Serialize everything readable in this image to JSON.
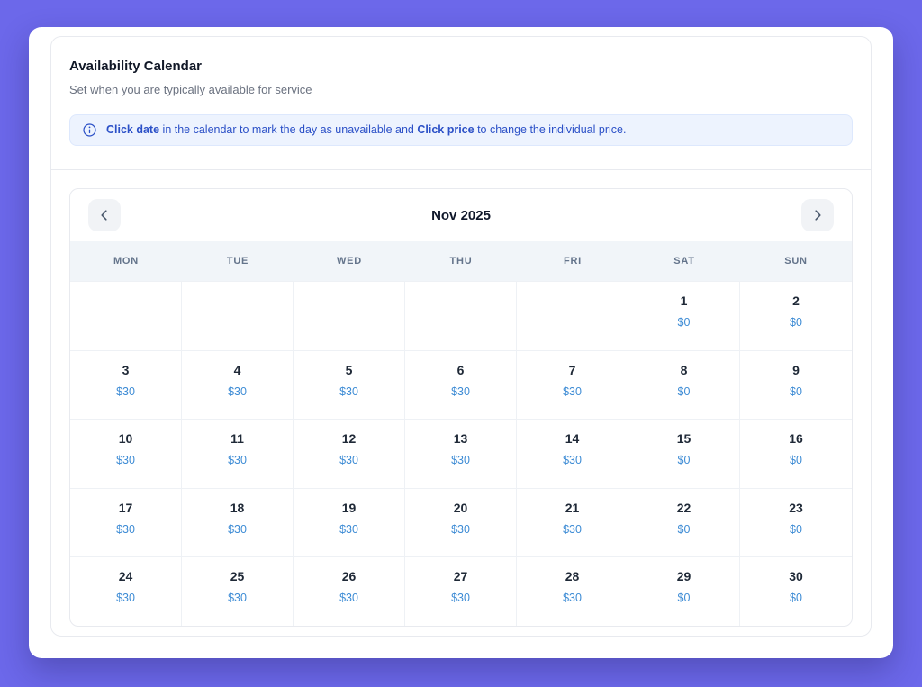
{
  "colors": {
    "page_bg": "#6c68ea",
    "accent_blue": "#2b50c7",
    "price_blue": "#3e8cd5"
  },
  "section": {
    "title": "Availability Calendar",
    "subtitle": "Set when you are typically available for service"
  },
  "banner": {
    "icon": "info-icon",
    "segments": [
      {
        "text": "Click date",
        "bold": true
      },
      {
        "text": " in the calendar to mark the day as unavailable and ",
        "bold": false
      },
      {
        "text": "Click price",
        "bold": true
      },
      {
        "text": " to change the individual price.",
        "bold": false
      }
    ]
  },
  "calendar": {
    "month_label": "Nov 2025",
    "weekdays": [
      "MON",
      "TUE",
      "WED",
      "THU",
      "FRI",
      "SAT",
      "SUN"
    ],
    "weeks": [
      [
        null,
        null,
        null,
        null,
        null,
        {
          "day": "1",
          "price": "$0"
        },
        {
          "day": "2",
          "price": "$0"
        }
      ],
      [
        {
          "day": "3",
          "price": "$30"
        },
        {
          "day": "4",
          "price": "$30"
        },
        {
          "day": "5",
          "price": "$30"
        },
        {
          "day": "6",
          "price": "$30"
        },
        {
          "day": "7",
          "price": "$30"
        },
        {
          "day": "8",
          "price": "$0"
        },
        {
          "day": "9",
          "price": "$0"
        }
      ],
      [
        {
          "day": "10",
          "price": "$30"
        },
        {
          "day": "11",
          "price": "$30"
        },
        {
          "day": "12",
          "price": "$30"
        },
        {
          "day": "13",
          "price": "$30"
        },
        {
          "day": "14",
          "price": "$30"
        },
        {
          "day": "15",
          "price": "$0"
        },
        {
          "day": "16",
          "price": "$0"
        }
      ],
      [
        {
          "day": "17",
          "price": "$30"
        },
        {
          "day": "18",
          "price": "$30"
        },
        {
          "day": "19",
          "price": "$30"
        },
        {
          "day": "20",
          "price": "$30"
        },
        {
          "day": "21",
          "price": "$30"
        },
        {
          "day": "22",
          "price": "$0"
        },
        {
          "day": "23",
          "price": "$0"
        }
      ],
      [
        {
          "day": "24",
          "price": "$30"
        },
        {
          "day": "25",
          "price": "$30"
        },
        {
          "day": "26",
          "price": "$30"
        },
        {
          "day": "27",
          "price": "$30"
        },
        {
          "day": "28",
          "price": "$30"
        },
        {
          "day": "29",
          "price": "$0"
        },
        {
          "day": "30",
          "price": "$0"
        }
      ]
    ]
  }
}
